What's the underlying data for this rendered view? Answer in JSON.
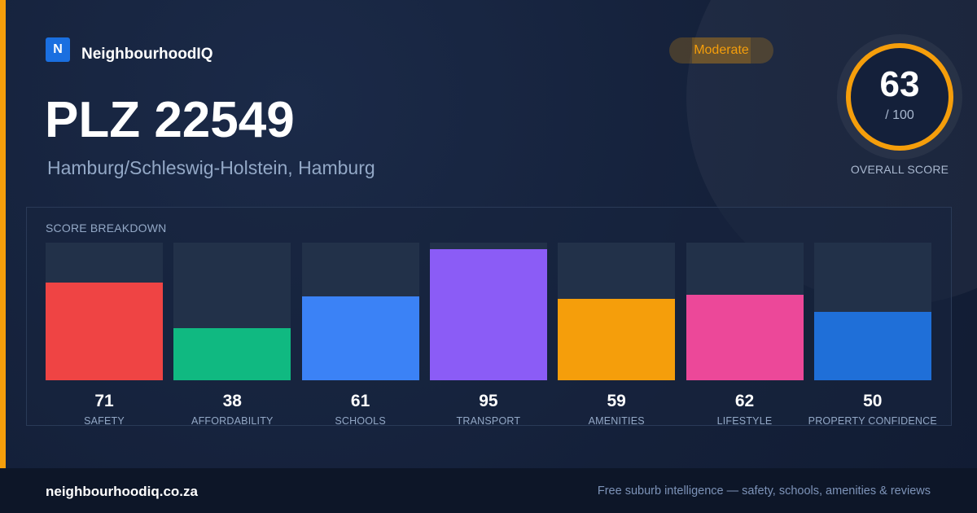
{
  "brand": {
    "logo_letter": "N",
    "name": "NeighbourhoodIQ",
    "logo_color": "#1a6fe0"
  },
  "header": {
    "title": "PLZ 22549",
    "subtitle": "Hamburg/Schleswig-Holstein, Hamburg"
  },
  "badge": {
    "label": "Moderate",
    "color": "#f59e0b"
  },
  "overall": {
    "score": "63",
    "max_label": "/ 100",
    "label": "OVERALL SCORE",
    "ring_color": "#f59e0b",
    "fraction": 0.63
  },
  "breakdown": {
    "title": "SCORE BREAKDOWN"
  },
  "chart_data": {
    "type": "bar",
    "categories": [
      "SAFETY",
      "AFFORDABILITY",
      "SCHOOLS",
      "TRANSPORT",
      "AMENITIES",
      "LIFESTYLE",
      "PROPERTY CONFIDENCE"
    ],
    "values": [
      71,
      38,
      61,
      95,
      59,
      62,
      50
    ],
    "colors": [
      "#ef4444",
      "#10b981",
      "#3b82f6",
      "#8b5cf6",
      "#f59e0b",
      "#ec4899",
      "#1f6fd8"
    ],
    "ylim": [
      0,
      100
    ]
  },
  "footer": {
    "domain": "neighbourhoodiq.co.za",
    "tagline": "Free suburb intelligence — safety, schools, amenities & reviews"
  }
}
